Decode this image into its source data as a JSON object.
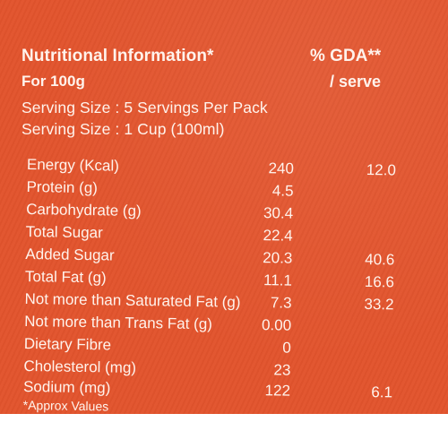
{
  "header": {
    "title": "Nutritional Information*",
    "gda_heading": "% GDA**",
    "per_label": "For 100g",
    "serve_label": "/ serve"
  },
  "serving": {
    "line1": "Serving Size : 5 Servings Per Pack",
    "line2": "Serving Size : 1 Cup (100ml)"
  },
  "nutrients": [
    {
      "name": "Energy (Kcal)",
      "value": "240",
      "gda": "12.0"
    },
    {
      "name": "Protein (g)",
      "value": "4.5",
      "gda": ""
    },
    {
      "name": "Carbohydrate (g)",
      "value": "30.4",
      "gda": ""
    },
    {
      "name": "Total Sugar",
      "value": "22.4",
      "gda": ""
    },
    {
      "name": "Added Sugar",
      "value": "20.3",
      "gda": "40.6"
    },
    {
      "name": "Total Fat (g)",
      "value": "11.1",
      "gda": "16.6"
    },
    {
      "name": "Not more than Saturated Fat (g)",
      "value": "7.3",
      "gda": "33.2"
    },
    {
      "name": "Not more than Trans Fat (g)",
      "value": "0.00",
      "gda": ""
    },
    {
      "name": "Dietary Fibre",
      "value": "0",
      "gda": ""
    },
    {
      "name": "Cholesterol (mg)",
      "value": "23",
      "gda": ""
    },
    {
      "name": "Sodium (mg)",
      "value": "122",
      "gda": "6.1"
    }
  ],
  "footnote": "*Approx Values",
  "colors": {
    "label_background": "#e2542d",
    "text": "#fff3ec"
  }
}
